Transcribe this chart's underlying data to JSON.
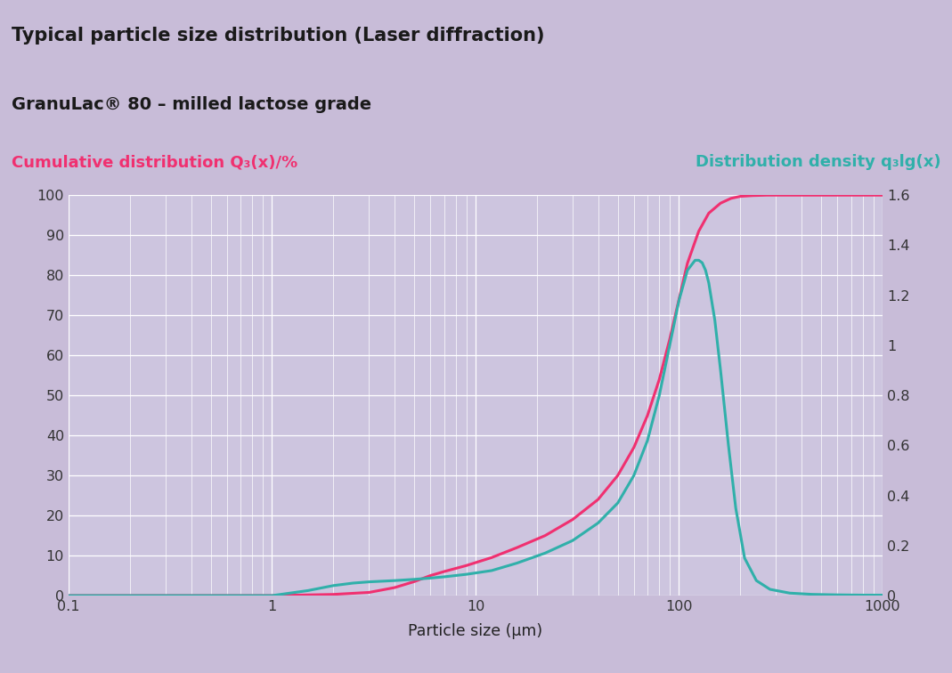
{
  "title1": "Typical particle size distribution (Laser diffraction)",
  "title2": "GranuLac® 80 – milled lactose grade",
  "left_label": "Cumulative distribution Q₃(x)/%",
  "right_label": "Distribution density q₃lg(x)",
  "xlabel": "Particle size (µm)",
  "bg_title1": "#c8bcd8",
  "bg_title2": "#e8e4f0",
  "bg_labels": "#c8bcd8",
  "bg_plot": "#c8bcd8",
  "bg_plot_inner": "#cdc5df",
  "grid_color": "#b8b0cc",
  "cumulative_color": "#f03070",
  "density_color": "#30b0aa",
  "left_label_color": "#f03070",
  "right_label_color": "#30b0aa",
  "title1_color": "#1a1a1a",
  "title2_color": "#1a1a1a",
  "xlim_log": [
    0.1,
    1000
  ],
  "ylim_left": [
    0,
    100
  ],
  "ylim_right": [
    0,
    1.6
  ],
  "cumulative_x": [
    0.1,
    1.0,
    2.0,
    3.0,
    4.0,
    5.0,
    6.0,
    7.0,
    9.0,
    12.0,
    16.0,
    22.0,
    30.0,
    40.0,
    50.0,
    60.0,
    70.0,
    80.0,
    90.0,
    100.0,
    110.0,
    125.0,
    140.0,
    160.0,
    180.0,
    200.0,
    230.0,
    270.0,
    350.0,
    500.0,
    700.0,
    1000.0
  ],
  "cumulative_y": [
    0,
    0,
    0.3,
    0.8,
    2.0,
    3.5,
    5.0,
    6.0,
    7.5,
    9.5,
    12.0,
    15.0,
    19.0,
    24.0,
    30.0,
    37.0,
    45.0,
    54.0,
    64.0,
    74.0,
    83.0,
    91.0,
    95.5,
    98.0,
    99.2,
    99.7,
    99.9,
    100.0,
    100.0,
    100.0,
    100.0,
    100.0
  ],
  "density_x": [
    0.1,
    1.0,
    1.5,
    2.0,
    2.5,
    3.0,
    4.0,
    5.0,
    6.0,
    7.0,
    9.0,
    12.0,
    16.0,
    22.0,
    30.0,
    40.0,
    50.0,
    60.0,
    70.0,
    80.0,
    90.0,
    100.0,
    110.0,
    120.0,
    125.0,
    130.0,
    135.0,
    140.0,
    150.0,
    160.0,
    175.0,
    190.0,
    210.0,
    240.0,
    280.0,
    350.0,
    450.0,
    600.0,
    800.0,
    1000.0
  ],
  "density_y": [
    0,
    0,
    0.02,
    0.04,
    0.05,
    0.055,
    0.06,
    0.065,
    0.07,
    0.075,
    0.085,
    0.1,
    0.13,
    0.17,
    0.22,
    0.29,
    0.37,
    0.48,
    0.62,
    0.8,
    1.0,
    1.18,
    1.3,
    1.34,
    1.34,
    1.33,
    1.3,
    1.25,
    1.1,
    0.9,
    0.6,
    0.35,
    0.15,
    0.06,
    0.025,
    0.01,
    0.005,
    0.003,
    0.002,
    0.002
  ]
}
